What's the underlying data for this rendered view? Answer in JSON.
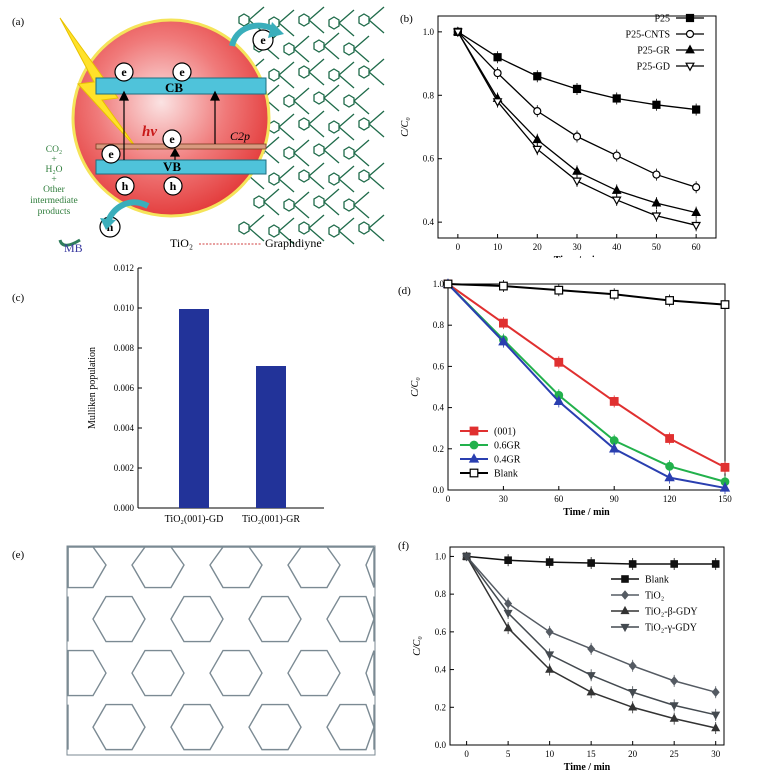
{
  "panels": {
    "a": {
      "label": "(a)",
      "e": "e",
      "h": "h",
      "cb": "CB",
      "vb": "VB",
      "hv": "hν",
      "c2p": "C2p",
      "left_text": [
        "CO₂",
        "+",
        "H₂O",
        "+",
        "Other",
        "intermediate",
        "products"
      ],
      "mb": "MB",
      "tio2": "TiO₂",
      "graphdiyne": "Graphdiyne",
      "colors": {
        "sphere": "#e33a3a",
        "band": "#4fc3da",
        "arrow": "#3aaebb",
        "lightning": "#ffe22a",
        "lattice": "#1f6b4a"
      }
    },
    "c": {
      "label": "(c)",
      "chart_data": {
        "type": "bar",
        "categories": [
          "TiO₂(001)-GD",
          "TiO₂(001)-GR"
        ],
        "values": [
          0.00995,
          0.0071
        ],
        "ylabel": "Mulliken population",
        "ylim": [
          0,
          0.012
        ],
        "yticks": [
          "0.000",
          "0.002",
          "0.004",
          "0.006",
          "0.008",
          "0.010",
          "0.012"
        ],
        "bar_color": "#223399"
      }
    },
    "e": {
      "label": "(e)",
      "colors": {
        "lattice": "#7b8a93"
      }
    }
  },
  "chart_data": [
    {
      "panel": "(b)",
      "type": "line",
      "xlabel": "Time / min",
      "ylabel": "C/C₀",
      "xlim": [
        -5,
        65
      ],
      "ylim": [
        0.35,
        1.05
      ],
      "xticks": [
        0,
        10,
        20,
        30,
        40,
        50,
        60
      ],
      "yticks": [
        0.4,
        0.6,
        0.8,
        1.0
      ],
      "legend_position": "top-right",
      "series": [
        {
          "name": "P25",
          "marker": "square",
          "x": [
            0,
            10,
            20,
            30,
            40,
            50,
            60
          ],
          "values": [
            1.0,
            0.92,
            0.86,
            0.82,
            0.79,
            0.77,
            0.755
          ]
        },
        {
          "name": "P25-CNTS",
          "marker": "circle-open",
          "x": [
            0,
            10,
            20,
            30,
            40,
            50,
            60
          ],
          "values": [
            1.0,
            0.87,
            0.75,
            0.67,
            0.61,
            0.55,
            0.51
          ]
        },
        {
          "name": "P25-GR",
          "marker": "triangle",
          "x": [
            0,
            10,
            20,
            30,
            40,
            50,
            60
          ],
          "values": [
            1.0,
            0.79,
            0.66,
            0.56,
            0.5,
            0.46,
            0.43
          ]
        },
        {
          "name": "P25-GD",
          "marker": "triangle-down-open",
          "x": [
            0,
            10,
            20,
            30,
            40,
            50,
            60
          ],
          "values": [
            1.0,
            0.78,
            0.63,
            0.53,
            0.47,
            0.42,
            0.39
          ]
        }
      ]
    },
    {
      "panel": "(d)",
      "type": "line",
      "xlabel": "Time / min",
      "ylabel": "C/C₀",
      "xlim": [
        0,
        150
      ],
      "ylim": [
        0,
        1.0
      ],
      "xticks": [
        0,
        30,
        60,
        90,
        120,
        150
      ],
      "yticks": [
        0.0,
        0.2,
        0.4,
        0.6,
        0.8,
        1.0
      ],
      "legend_position": "bottom-left",
      "series": [
        {
          "name": "(001)",
          "color": "#e03030",
          "marker": "square",
          "x": [
            0,
            30,
            60,
            90,
            120,
            150
          ],
          "values": [
            1.0,
            0.81,
            0.62,
            0.43,
            0.25,
            0.11
          ]
        },
        {
          "name": "0.6GR",
          "color": "#22b14c",
          "marker": "circle",
          "x": [
            0,
            30,
            60,
            90,
            120,
            150
          ],
          "values": [
            1.0,
            0.73,
            0.46,
            0.24,
            0.115,
            0.04
          ]
        },
        {
          "name": "0.4GR",
          "color": "#2a3fb0",
          "marker": "triangle",
          "x": [
            0,
            30,
            60,
            90,
            120,
            150
          ],
          "values": [
            1.0,
            0.72,
            0.43,
            0.2,
            0.06,
            0.01
          ]
        },
        {
          "name": "Blank",
          "color": "#000000",
          "marker": "square-open",
          "x": [
            0,
            30,
            60,
            90,
            120,
            150
          ],
          "values": [
            1.0,
            0.99,
            0.97,
            0.95,
            0.92,
            0.9
          ]
        }
      ]
    },
    {
      "panel": "(f)",
      "type": "line",
      "xlabel": "Time / min",
      "ylabel": "C/C₀",
      "xlim": [
        -2,
        31
      ],
      "ylim": [
        0,
        1.05
      ],
      "xticks": [
        0,
        5,
        10,
        15,
        20,
        25,
        30
      ],
      "yticks": [
        0.0,
        0.2,
        0.4,
        0.6,
        0.8,
        1.0
      ],
      "legend_position": "top-right",
      "series": [
        {
          "name": "Blank",
          "color": "#111111",
          "marker": "square",
          "x": [
            0,
            5,
            10,
            15,
            20,
            25,
            30
          ],
          "values": [
            1.0,
            0.98,
            0.97,
            0.965,
            0.96,
            0.96,
            0.96
          ]
        },
        {
          "name": "TiO₂",
          "color": "#555b63",
          "marker": "diamond",
          "x": [
            0,
            5,
            10,
            15,
            20,
            25,
            30
          ],
          "values": [
            1.0,
            0.75,
            0.6,
            0.51,
            0.42,
            0.34,
            0.28
          ]
        },
        {
          "name": "TiO₂-β-GDY",
          "color": "#333333",
          "marker": "triangle",
          "x": [
            0,
            5,
            10,
            15,
            20,
            25,
            30
          ],
          "values": [
            1.0,
            0.62,
            0.4,
            0.28,
            0.2,
            0.14,
            0.09
          ]
        },
        {
          "name": "TiO₂-γ-GDY",
          "color": "#444a50",
          "marker": "triangle-down",
          "x": [
            0,
            5,
            10,
            15,
            20,
            25,
            30
          ],
          "values": [
            1.0,
            0.7,
            0.48,
            0.37,
            0.28,
            0.21,
            0.16
          ]
        }
      ]
    }
  ]
}
